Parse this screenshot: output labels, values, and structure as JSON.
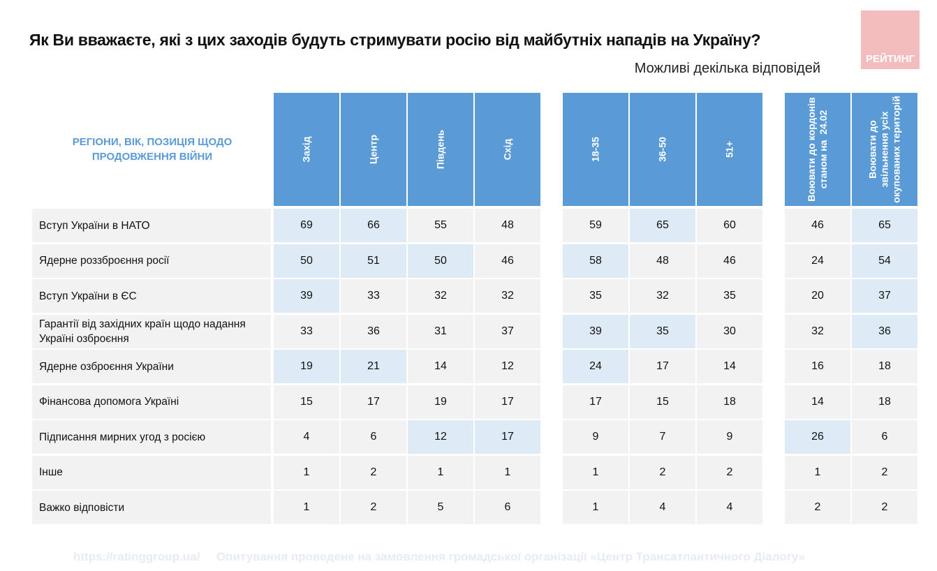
{
  "title": "Як Ви вважаєте, які з цих заходів будуть стримувати росію від майбутніх нападів на Україну?",
  "subtitle": "Можливі декілька відповідей",
  "logo_text": "РЕЙТИНГ",
  "corner_label": "РЕГІОНИ, ВІК, ПОЗИЦІЯ ЩОДО ПРОДОВЖЕННЯ ВІЙНИ",
  "columns": [
    "Захід",
    "Центр",
    "Південь",
    "Схід",
    "18-35",
    "36-50",
    "51+",
    "Воювати до кордонів\nстаном на  24.02",
    "Воювати до\nзвільнення усіх\nокупованих територій"
  ],
  "rows": [
    {
      "label": "Вступ України в НАТО",
      "values": [
        69,
        66,
        55,
        48,
        59,
        65,
        60,
        46,
        65
      ],
      "highlight": [
        1,
        1,
        0,
        0,
        0,
        1,
        0,
        0,
        1
      ]
    },
    {
      "label": "Ядерне роззброєння росії",
      "values": [
        50,
        51,
        50,
        46,
        58,
        48,
        46,
        24,
        54
      ],
      "highlight": [
        1,
        1,
        1,
        0,
        1,
        0,
        0,
        0,
        1
      ]
    },
    {
      "label": "Вступ України в ЄС",
      "values": [
        39,
        33,
        32,
        32,
        35,
        32,
        35,
        20,
        37
      ],
      "highlight": [
        1,
        0,
        0,
        0,
        0,
        0,
        0,
        0,
        1
      ]
    },
    {
      "label": "Гарантії від західних країн щодо надання Україні озброєння",
      "values": [
        33,
        36,
        31,
        37,
        39,
        35,
        30,
        32,
        36
      ],
      "highlight": [
        0,
        0,
        0,
        0,
        1,
        1,
        0,
        0,
        1
      ]
    },
    {
      "label": "Ядерне озброєння України",
      "values": [
        19,
        21,
        14,
        12,
        24,
        17,
        14,
        16,
        18
      ],
      "highlight": [
        1,
        1,
        0,
        0,
        1,
        0,
        0,
        0,
        0
      ]
    },
    {
      "label": "Фінансова допомога Україні",
      "values": [
        15,
        17,
        19,
        17,
        17,
        15,
        18,
        14,
        18
      ],
      "highlight": [
        0,
        0,
        0,
        0,
        0,
        0,
        0,
        0,
        0
      ]
    },
    {
      "label": "Підписання мирних угод з росією",
      "values": [
        4,
        6,
        12,
        17,
        9,
        7,
        9,
        26,
        6
      ],
      "highlight": [
        0,
        0,
        1,
        1,
        0,
        0,
        0,
        1,
        0
      ]
    },
    {
      "label": "Інше",
      "values": [
        1,
        2,
        1,
        1,
        1,
        2,
        2,
        1,
        2
      ],
      "highlight": [
        0,
        0,
        0,
        0,
        0,
        0,
        0,
        0,
        0
      ]
    },
    {
      "label": "Важко відповісти",
      "values": [
        1,
        2,
        5,
        6,
        1,
        4,
        4,
        2,
        2
      ],
      "highlight": [
        0,
        0,
        0,
        0,
        0,
        0,
        0,
        0,
        0
      ]
    }
  ],
  "footer": {
    "url": "https://ratinggroup.ua/",
    "note": "Опитування проведене на замовлення громадської організації «Центр Трансатлантичного Діалогу»"
  },
  "colors": {
    "header": "#5b9bd5",
    "cell": "#f2f2f2",
    "highlight": "#deeaf6",
    "logo": "#f4bdbd"
  }
}
